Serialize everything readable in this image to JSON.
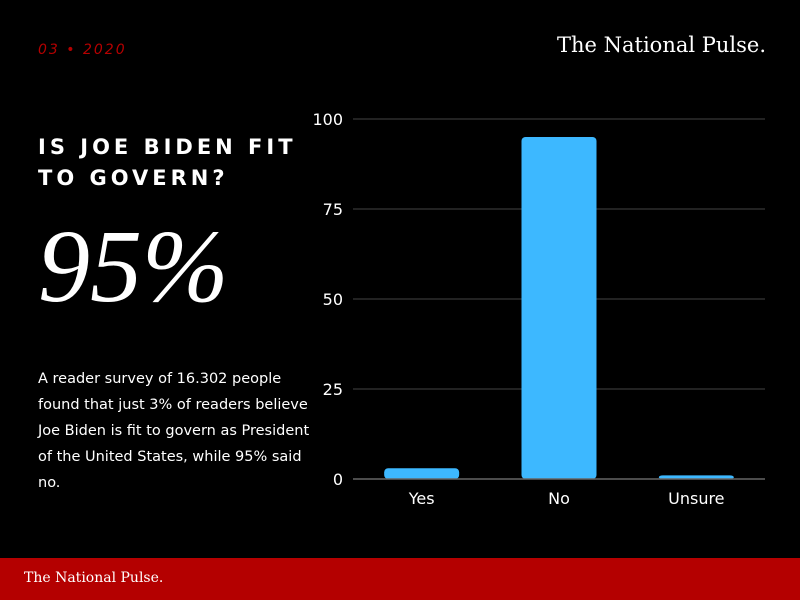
{
  "header": {
    "date": "03 • 2020",
    "brand": "The National Pulse."
  },
  "headline": {
    "question": "IS JOE BIDEN FIT TO GOVERN?",
    "big_stat": "95%",
    "description": "A reader survey of 16.302 people found that just 3% of readers believe Joe Biden is fit to govern as President of the United States, while 95% said no."
  },
  "footer": {
    "brand": "The National Pulse."
  },
  "colors": {
    "accent": "#b40000",
    "bar": "#3db8ff",
    "grid": "#444444",
    "text": "#ffffff",
    "background": "#000000"
  },
  "chart_data": {
    "type": "bar",
    "categories": [
      "Yes",
      "No",
      "Unsure"
    ],
    "values": [
      3,
      95,
      1
    ],
    "ylim": [
      0,
      100
    ],
    "yticks": [
      0,
      25,
      50,
      75,
      100
    ],
    "title": "",
    "xlabel": "",
    "ylabel": "",
    "grid": true
  }
}
